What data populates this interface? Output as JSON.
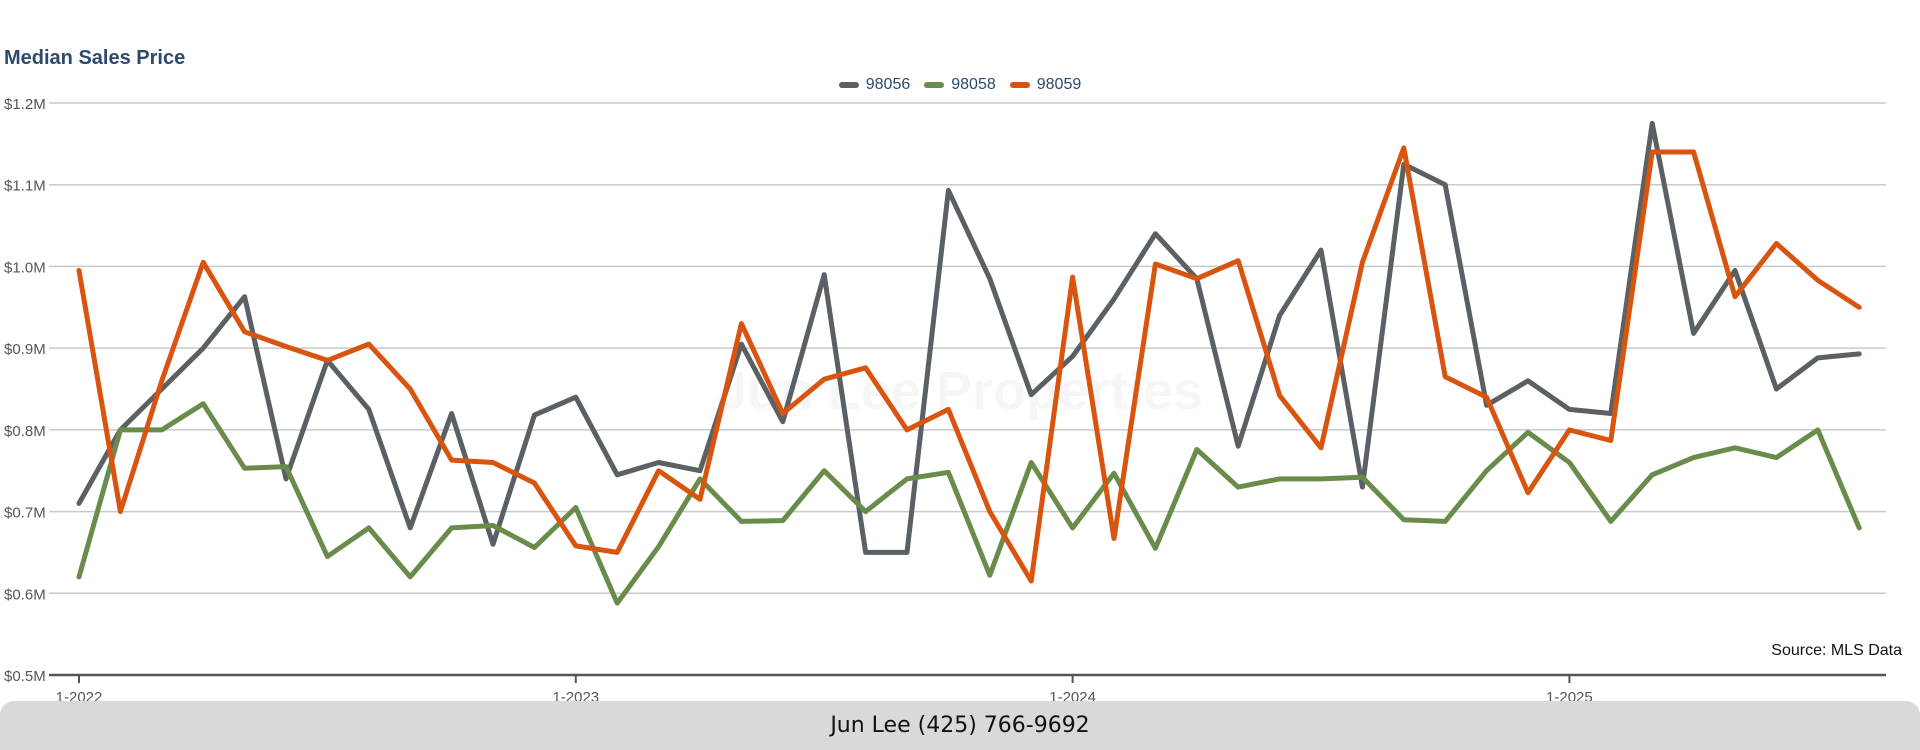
{
  "footer": {
    "contact": "Jun Lee (425) 766-9692"
  },
  "watermark": "Jun Lee Properties",
  "source_note": "Source: MLS Data",
  "colors": {
    "98056": "#5a6063",
    "98058": "#6a8c4a",
    "98059": "#d9540f",
    "title": "#2d4a6b",
    "grid": "#c9c9c9"
  },
  "chart_data": {
    "type": "line",
    "title": "Median Sales Price",
    "xlabel": "",
    "ylabel": "",
    "ylim": [
      0.5,
      1.2
    ],
    "yticks": [
      {
        "value": 0.5,
        "label": "$0.5M"
      },
      {
        "value": 0.6,
        "label": "$0.6M"
      },
      {
        "value": 0.7,
        "label": "$0.7M"
      },
      {
        "value": 0.8,
        "label": "$0.8M"
      },
      {
        "value": 0.9,
        "label": "$0.9M"
      },
      {
        "value": 1.0,
        "label": "$1.0M"
      },
      {
        "value": 1.1,
        "label": "$1.1M"
      },
      {
        "value": 1.2,
        "label": "$1.2M"
      }
    ],
    "xticks": [
      {
        "index": 0,
        "label": "1-2022"
      },
      {
        "index": 12,
        "label": "1-2023"
      },
      {
        "index": 24,
        "label": "1-2024"
      },
      {
        "index": 36,
        "label": "1-2025"
      }
    ],
    "grid": true,
    "legend_position": "top-center",
    "series": [
      {
        "name": "98056",
        "color": "#5a6063",
        "values": [
          0.71,
          0.8,
          0.85,
          0.9,
          0.963,
          0.74,
          0.885,
          0.825,
          0.68,
          0.82,
          0.66,
          0.818,
          0.84,
          0.745,
          0.76,
          0.75,
          0.905,
          0.81,
          0.99,
          0.65,
          0.65,
          1.093,
          0.985,
          0.843,
          0.89,
          0.96,
          1.04,
          0.985,
          0.78,
          0.94,
          1.02,
          0.73,
          1.125,
          1.1,
          0.83,
          0.86,
          0.825,
          0.82,
          1.175,
          0.918,
          0.995,
          0.85,
          0.888,
          0.893
        ]
      },
      {
        "name": "98058",
        "color": "#6a8c4a",
        "values": [
          0.62,
          0.8,
          0.8,
          0.832,
          0.753,
          0.755,
          0.645,
          0.68,
          0.62,
          0.68,
          0.683,
          0.656,
          0.705,
          0.588,
          0.657,
          0.74,
          0.688,
          0.689,
          0.75,
          0.7,
          0.74,
          0.748,
          0.622,
          0.76,
          0.68,
          0.747,
          0.655,
          0.776,
          0.73,
          0.74,
          0.74,
          0.742,
          0.69,
          0.688,
          0.75,
          0.797,
          0.76,
          0.688,
          0.745,
          0.766,
          0.778,
          0.766,
          0.8,
          0.68
        ]
      },
      {
        "name": "98059",
        "color": "#d9540f",
        "values": [
          0.995,
          0.7,
          0.86,
          1.005,
          0.92,
          0.902,
          0.885,
          0.905,
          0.85,
          0.763,
          0.76,
          0.735,
          0.658,
          0.65,
          0.75,
          0.715,
          0.93,
          0.82,
          0.862,
          0.876,
          0.8,
          0.825,
          0.7,
          0.615,
          0.987,
          0.667,
          1.003,
          0.985,
          1.007,
          0.842,
          0.778,
          1.005,
          1.145,
          0.865,
          0.84,
          0.723,
          0.8,
          0.787,
          1.14,
          1.14,
          0.963,
          1.028,
          0.983,
          0.95
        ]
      }
    ]
  }
}
